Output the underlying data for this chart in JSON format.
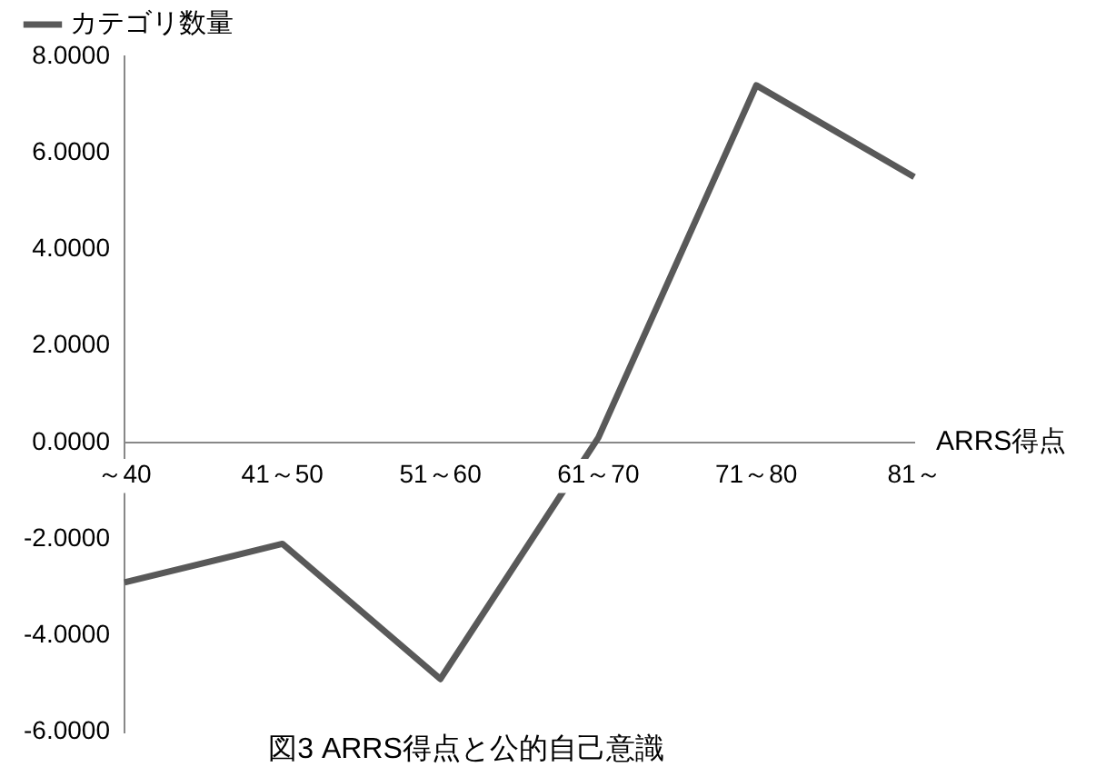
{
  "chart_data": {
    "type": "line",
    "title": "図3 ARRS得点と公的自己意識",
    "xlabel": "ARRS得点",
    "categories": [
      "～40",
      "41～50",
      "51～60",
      "61～70",
      "71～80",
      "81～"
    ],
    "series": [
      {
        "name": "カテゴリ数量",
        "color": "#595959",
        "values": [
          -2.9,
          -2.1,
          -4.9,
          0.1,
          7.4,
          5.5
        ]
      }
    ],
    "ylim": [
      -6,
      8
    ],
    "yticks": [
      {
        "value": -6,
        "label": "-6.0000"
      },
      {
        "value": -4,
        "label": "-4.0000"
      },
      {
        "value": -2,
        "label": "-2.0000"
      },
      {
        "value": 0,
        "label": "0.0000"
      },
      {
        "value": 2,
        "label": "2.0000"
      },
      {
        "value": 4,
        "label": "4.0000"
      },
      {
        "value": 6,
        "label": "6.0000"
      },
      {
        "value": 8,
        "label": "8.0000"
      }
    ],
    "grid": false,
    "legend": "top left",
    "marker": "none",
    "line_style": "solid"
  }
}
